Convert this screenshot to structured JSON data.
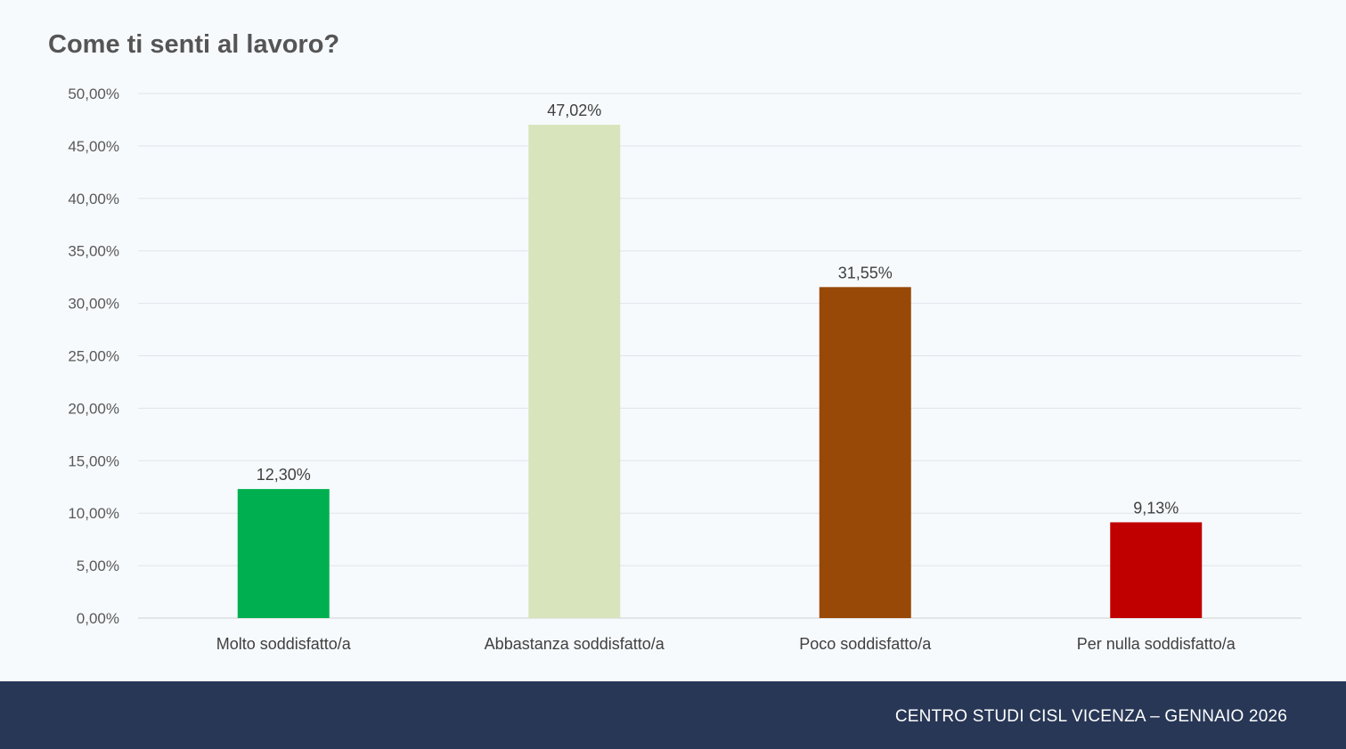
{
  "chart_data": {
    "type": "bar",
    "title": "Come ti senti al lavoro?",
    "categories": [
      "Molto soddisfatto/a",
      "Abbastanza soddisfatto/a",
      "Poco soddisfatto/a",
      "Per nulla soddisfatto/a"
    ],
    "values": [
      12.3,
      47.02,
      31.55,
      9.13
    ],
    "data_labels": [
      "12,30%",
      "47,02%",
      "31,55%",
      "9,13%"
    ],
    "bar_colors": [
      "#00b050",
      "#d8e4bc",
      "#984807",
      "#c00000"
    ],
    "ylim": [
      0,
      50
    ],
    "yticks": [
      0,
      5,
      10,
      15,
      20,
      25,
      30,
      35,
      40,
      45,
      50
    ],
    "ytick_labels": [
      "0,00%",
      "5,00%",
      "10,00%",
      "15,00%",
      "20,00%",
      "25,00%",
      "30,00%",
      "35,00%",
      "40,00%",
      "45,00%",
      "50,00%"
    ],
    "grid": true,
    "legend": "none",
    "xlabel": "",
    "ylabel": ""
  },
  "footer": {
    "text": "CENTRO STUDI CISL VICENZA – GENNAIO 2026"
  }
}
